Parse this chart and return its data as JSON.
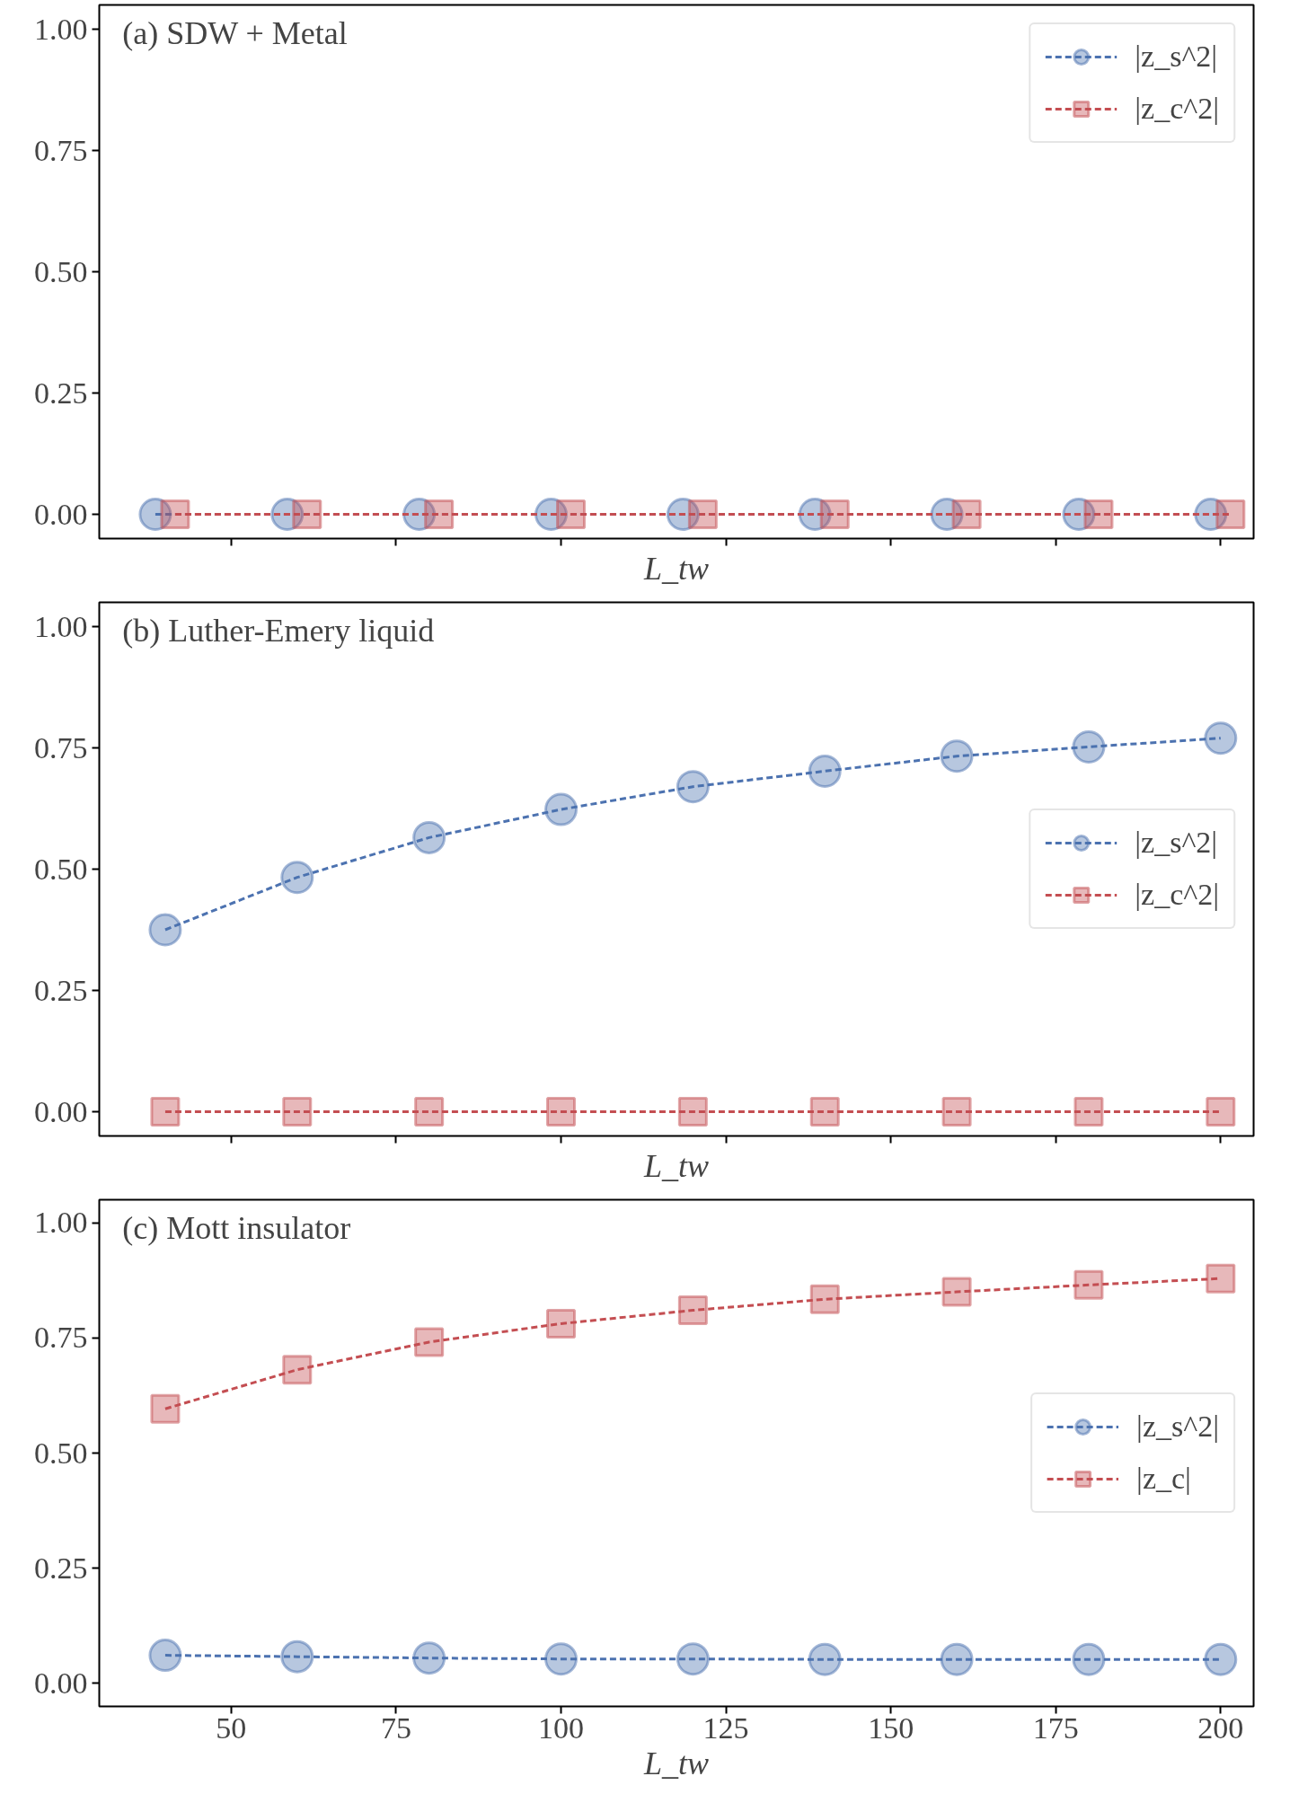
{
  "chart_data": [
    {
      "type": "line",
      "title": "(a) SDW + Metal",
      "xlabel": "L_tw",
      "xlim": [
        30,
        205
      ],
      "ylim": [
        -0.05,
        1.05
      ],
      "xticks": [
        50,
        75,
        100,
        125,
        150,
        175,
        200
      ],
      "yticks": [
        {
          "value": 0,
          "label": "0.00"
        },
        {
          "value": 0.25,
          "label": "0.25"
        },
        {
          "value": 0.5,
          "label": "0.50"
        },
        {
          "value": 0.75,
          "label": "0.75"
        },
        {
          "value": 1,
          "label": "1.00"
        }
      ],
      "tick_labels": "y",
      "legend": "top right",
      "line_style": "dashed",
      "grid": false,
      "series": [
        {
          "name": "|z_s^2|",
          "color": "#4c72b0",
          "marker": "circle",
          "x": [
            38.5,
            58.5,
            78.5,
            98.5,
            118.5,
            138.5,
            158.5,
            178.5,
            198.5
          ],
          "values": [
            0,
            0,
            0,
            0,
            0,
            0,
            0,
            0,
            0
          ]
        },
        {
          "name": "|z_c^2|",
          "color": "#c44e52",
          "marker": "square",
          "x": [
            41.5,
            61.5,
            81.5,
            101.5,
            121.5,
            141.5,
            161.5,
            181.5,
            201.5
          ],
          "values": [
            0,
            0,
            0,
            0,
            0,
            0,
            0,
            0,
            0
          ]
        }
      ]
    },
    {
      "type": "line",
      "title": "(b) Luther-Emery liquid",
      "xlabel": "L_tw",
      "x": [
        40,
        60,
        80,
        100,
        120,
        140,
        160,
        180,
        200
      ],
      "xlim": [
        30,
        205
      ],
      "ylim": [
        -0.05,
        1.05
      ],
      "xticks": [
        50,
        75,
        100,
        125,
        150,
        175,
        200
      ],
      "yticks": [
        {
          "value": 0,
          "label": "0.00"
        },
        {
          "value": 0.25,
          "label": "0.25"
        },
        {
          "value": 0.5,
          "label": "0.50"
        },
        {
          "value": 0.75,
          "label": "0.75"
        },
        {
          "value": 1,
          "label": "1.00"
        }
      ],
      "tick_labels": "y",
      "legend": "right",
      "line_style": "dashed",
      "grid": false,
      "series": [
        {
          "name": "|z_s^2|",
          "color": "#4c72b0",
          "marker": "circle",
          "values": [
            0.375,
            0.483,
            0.565,
            0.623,
            0.67,
            0.702,
            0.733,
            0.752,
            0.77
          ]
        },
        {
          "name": "|z_c^2|",
          "color": "#c44e52",
          "marker": "square",
          "values": [
            0,
            0,
            0,
            0,
            0,
            0,
            0,
            0,
            0
          ]
        }
      ]
    },
    {
      "type": "line",
      "title": "(c) Mott insulator",
      "xlabel": "L_tw",
      "x": [
        40,
        60,
        80,
        100,
        120,
        140,
        160,
        180,
        200
      ],
      "xlim": [
        30,
        205
      ],
      "ylim": [
        -0.05,
        1.05
      ],
      "xticks": [
        50,
        75,
        100,
        125,
        150,
        175,
        200
      ],
      "yticks": [
        {
          "value": 0,
          "label": "0.00"
        },
        {
          "value": 0.25,
          "label": "0.25"
        },
        {
          "value": 0.5,
          "label": "0.50"
        },
        {
          "value": 0.75,
          "label": "0.75"
        },
        {
          "value": 1,
          "label": "1.00"
        }
      ],
      "legend": "right",
      "line_style": "dashed",
      "grid": false,
      "series": [
        {
          "name": "|z_s^2|",
          "color": "#4c72b0",
          "marker": "circle",
          "values": [
            0.061,
            0.058,
            0.055,
            0.053,
            0.053,
            0.052,
            0.052,
            0.052,
            0.052
          ]
        },
        {
          "name": "|z_c|",
          "color": "#c44e52",
          "marker": "square",
          "values": [
            0.596,
            0.681,
            0.741,
            0.781,
            0.81,
            0.834,
            0.85,
            0.865,
            0.879
          ]
        }
      ]
    }
  ]
}
